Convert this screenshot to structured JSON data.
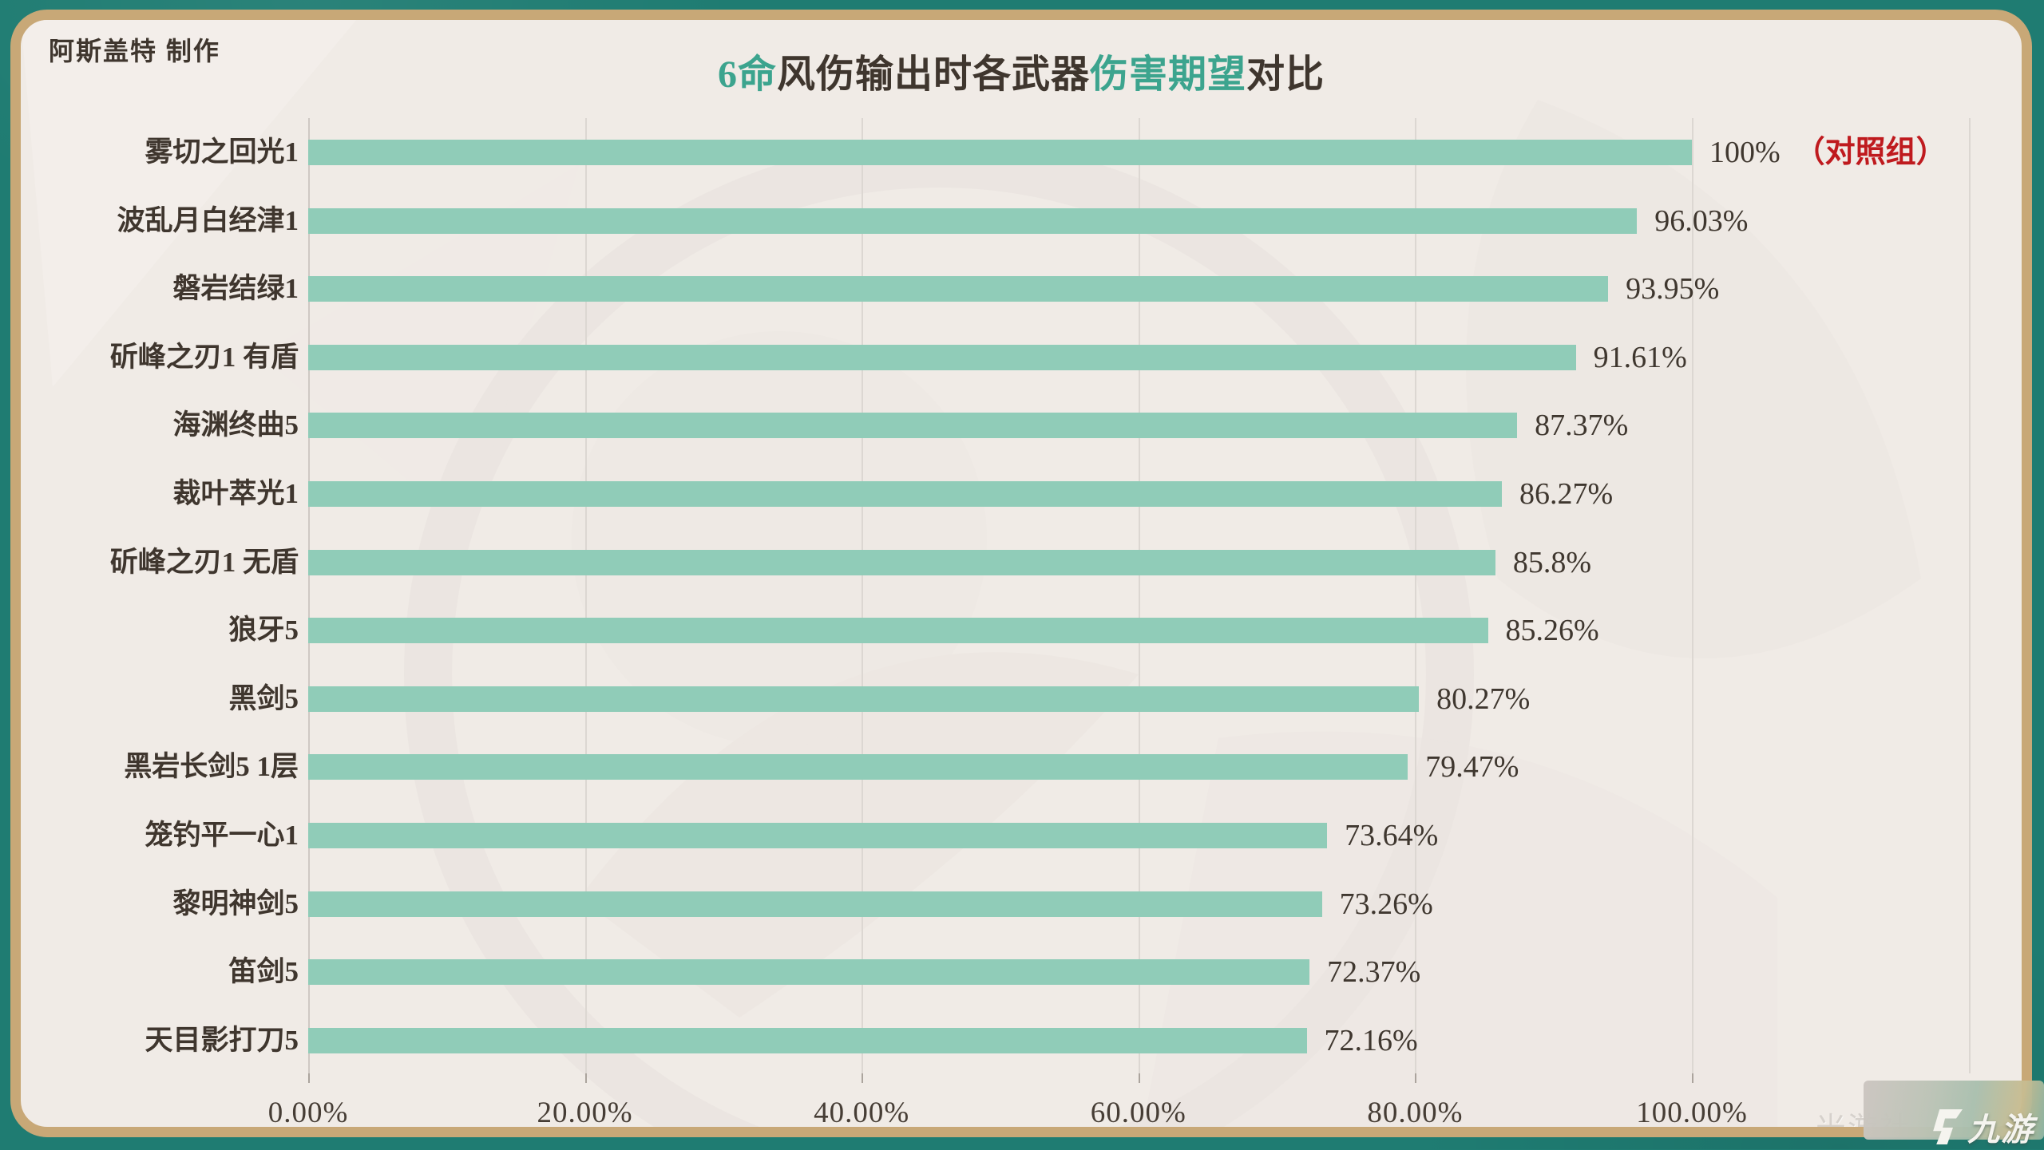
{
  "header": {
    "credit": "阿斯盖特  制作"
  },
  "title": {
    "segments": [
      {
        "text": "6命",
        "color": "#3CA48E"
      },
      {
        "text": "风伤输出时各武器",
        "color": "#3F362E"
      },
      {
        "text": "伤害期望",
        "color": "#3CA48E"
      },
      {
        "text": "对比",
        "color": "#3F362E"
      }
    ]
  },
  "chart_data": {
    "type": "bar",
    "orientation": "horizontal",
    "title": "6命风伤输出时各武器伤害期望对比",
    "categories": [
      "雾切之回光1",
      "波乱月白经津1",
      "磐岩结绿1",
      "斫峰之刃1 有盾",
      "海渊终曲5",
      "裁叶萃光1",
      "斫峰之刃1 无盾",
      "狼牙5",
      "黑剑5",
      "黑岩长剑5 1层",
      "笼钓平一心1",
      "黎明神剑5",
      "笛剑5",
      "天目影打刀5"
    ],
    "values": [
      100,
      96.03,
      93.95,
      91.61,
      87.37,
      86.27,
      85.8,
      85.26,
      80.27,
      79.47,
      73.64,
      73.26,
      72.37,
      72.16
    ],
    "value_labels": [
      "100%",
      "96.03%",
      "93.95%",
      "91.61%",
      "87.37%",
      "86.27%",
      "85.8%",
      "85.26%",
      "80.27%",
      "79.47%",
      "73.64%",
      "73.26%",
      "72.37%",
      "72.16%"
    ],
    "control_note": "（对照组）",
    "control_note_row": 0,
    "control_note_color": "#BF1A1E",
    "x_tick_labels": [
      "0.00%",
      "20.00%",
      "40.00%",
      "60.00%",
      "80.00%",
      "100.00%"
    ],
    "x_tick_values": [
      0,
      20,
      40,
      60,
      80,
      100
    ],
    "xlim": [
      0,
      120
    ],
    "grid": true,
    "legend": null,
    "bar_color": "#90CCB8"
  },
  "watermarks": {
    "site": "米游社",
    "logo": "九游"
  },
  "colors": {
    "frame": "#1F7C72",
    "border": "#C8A877",
    "card_bg": "#F0EBE6",
    "bar": "#90CCB8",
    "text_dark": "#3F362E",
    "accent_teal": "#3CA48E",
    "accent_red": "#BF1A1E",
    "gridline": "#DCD7D2"
  }
}
